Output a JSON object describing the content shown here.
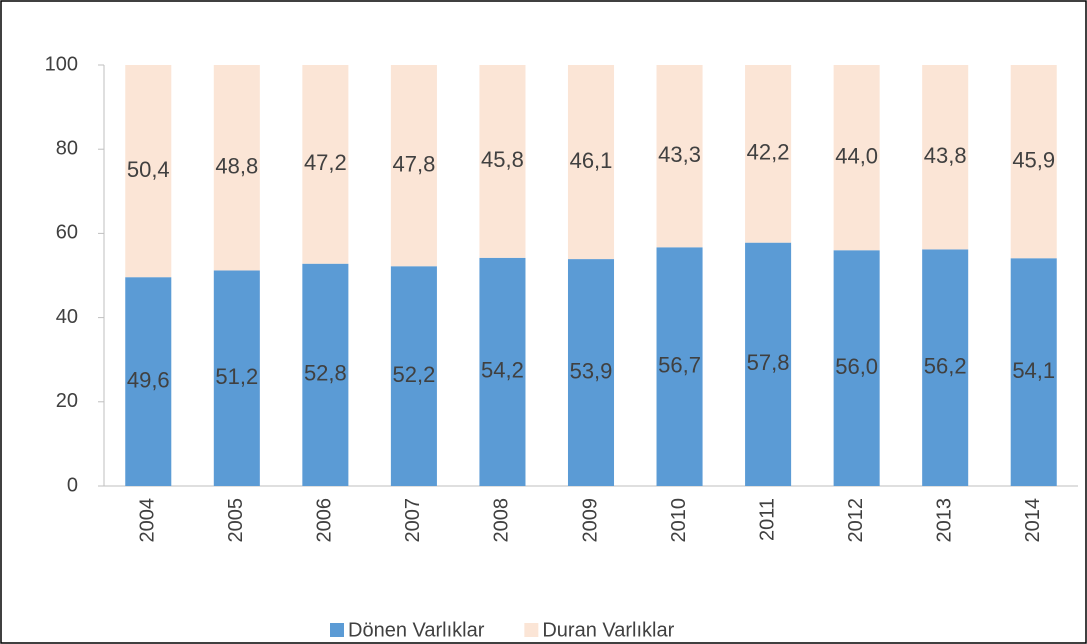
{
  "chart_data": {
    "type": "stacked_bar",
    "categories": [
      "2004",
      "2005",
      "2006",
      "2007",
      "2008",
      "2009",
      "2010",
      "2011",
      "2012",
      "2013",
      "2014"
    ],
    "series": [
      {
        "name": "Dönen Varlıklar",
        "color": "#5b9bd5",
        "values": [
          49.6,
          51.2,
          52.8,
          52.2,
          54.2,
          53.9,
          56.7,
          57.8,
          56.0,
          56.2,
          54.1
        ],
        "value_labels": [
          "49,6",
          "51,2",
          "52,8",
          "52,2",
          "54,2",
          "53,9",
          "56,7",
          "57,8",
          "56,0",
          "56,2",
          "54,1"
        ]
      },
      {
        "name": "Duran Varlıklar",
        "color": "#fbe5d6",
        "values": [
          50.4,
          48.8,
          47.2,
          47.8,
          45.8,
          46.1,
          43.3,
          42.2,
          44.0,
          43.8,
          45.9
        ],
        "value_labels": [
          "50,4",
          "48,8",
          "47,2",
          "47,8",
          "45,8",
          "46,1",
          "43,3",
          "42,2",
          "44,0",
          "43,8",
          "45,9"
        ]
      }
    ],
    "ylim": [
      0,
      100
    ],
    "yticks": [
      0,
      20,
      40,
      60,
      80,
      100
    ],
    "grid": false,
    "legend": "bottom"
  }
}
